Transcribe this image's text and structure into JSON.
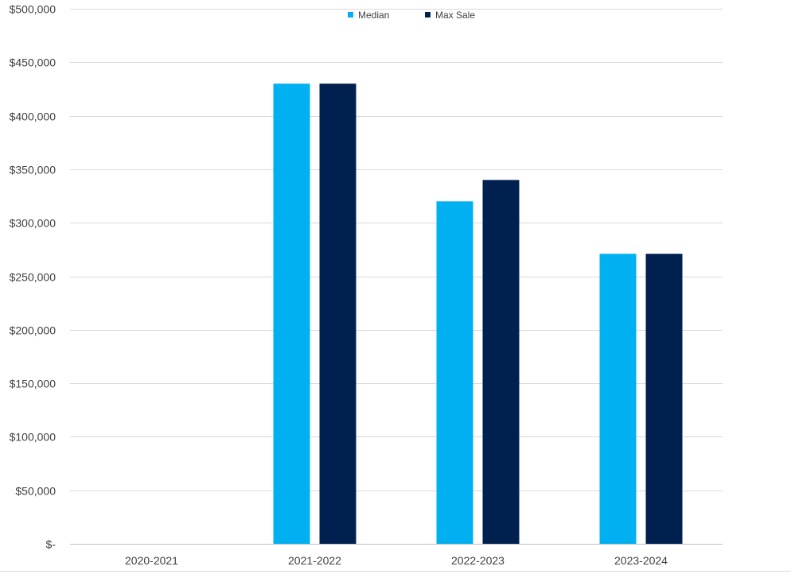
{
  "chart_data": {
    "type": "bar",
    "title": "",
    "xlabel": "",
    "ylabel": "",
    "categories": [
      "2020-2021",
      "2021-2022",
      "2022-2023",
      "2023-2024"
    ],
    "series": [
      {
        "name": "Median",
        "values": [
          0,
          430000,
          320000,
          271000
        ],
        "color": "#00B0F0"
      },
      {
        "name": "Max Sale",
        "values": [
          0,
          430000,
          340000,
          271000
        ],
        "color": "#002050"
      }
    ],
    "ylim": [
      0,
      500000
    ],
    "y_ticks": [
      0,
      50000,
      100000,
      150000,
      200000,
      250000,
      300000,
      350000,
      400000,
      450000,
      500000
    ],
    "y_tick_labels": [
      "$-",
      "$50,000",
      "$100,000",
      "$150,000",
      "$200,000",
      "$250,000",
      "$300,000",
      "$350,000",
      "$400,000",
      "$450,000",
      "$500,000"
    ],
    "grid": true,
    "legend_position": "top-center"
  }
}
